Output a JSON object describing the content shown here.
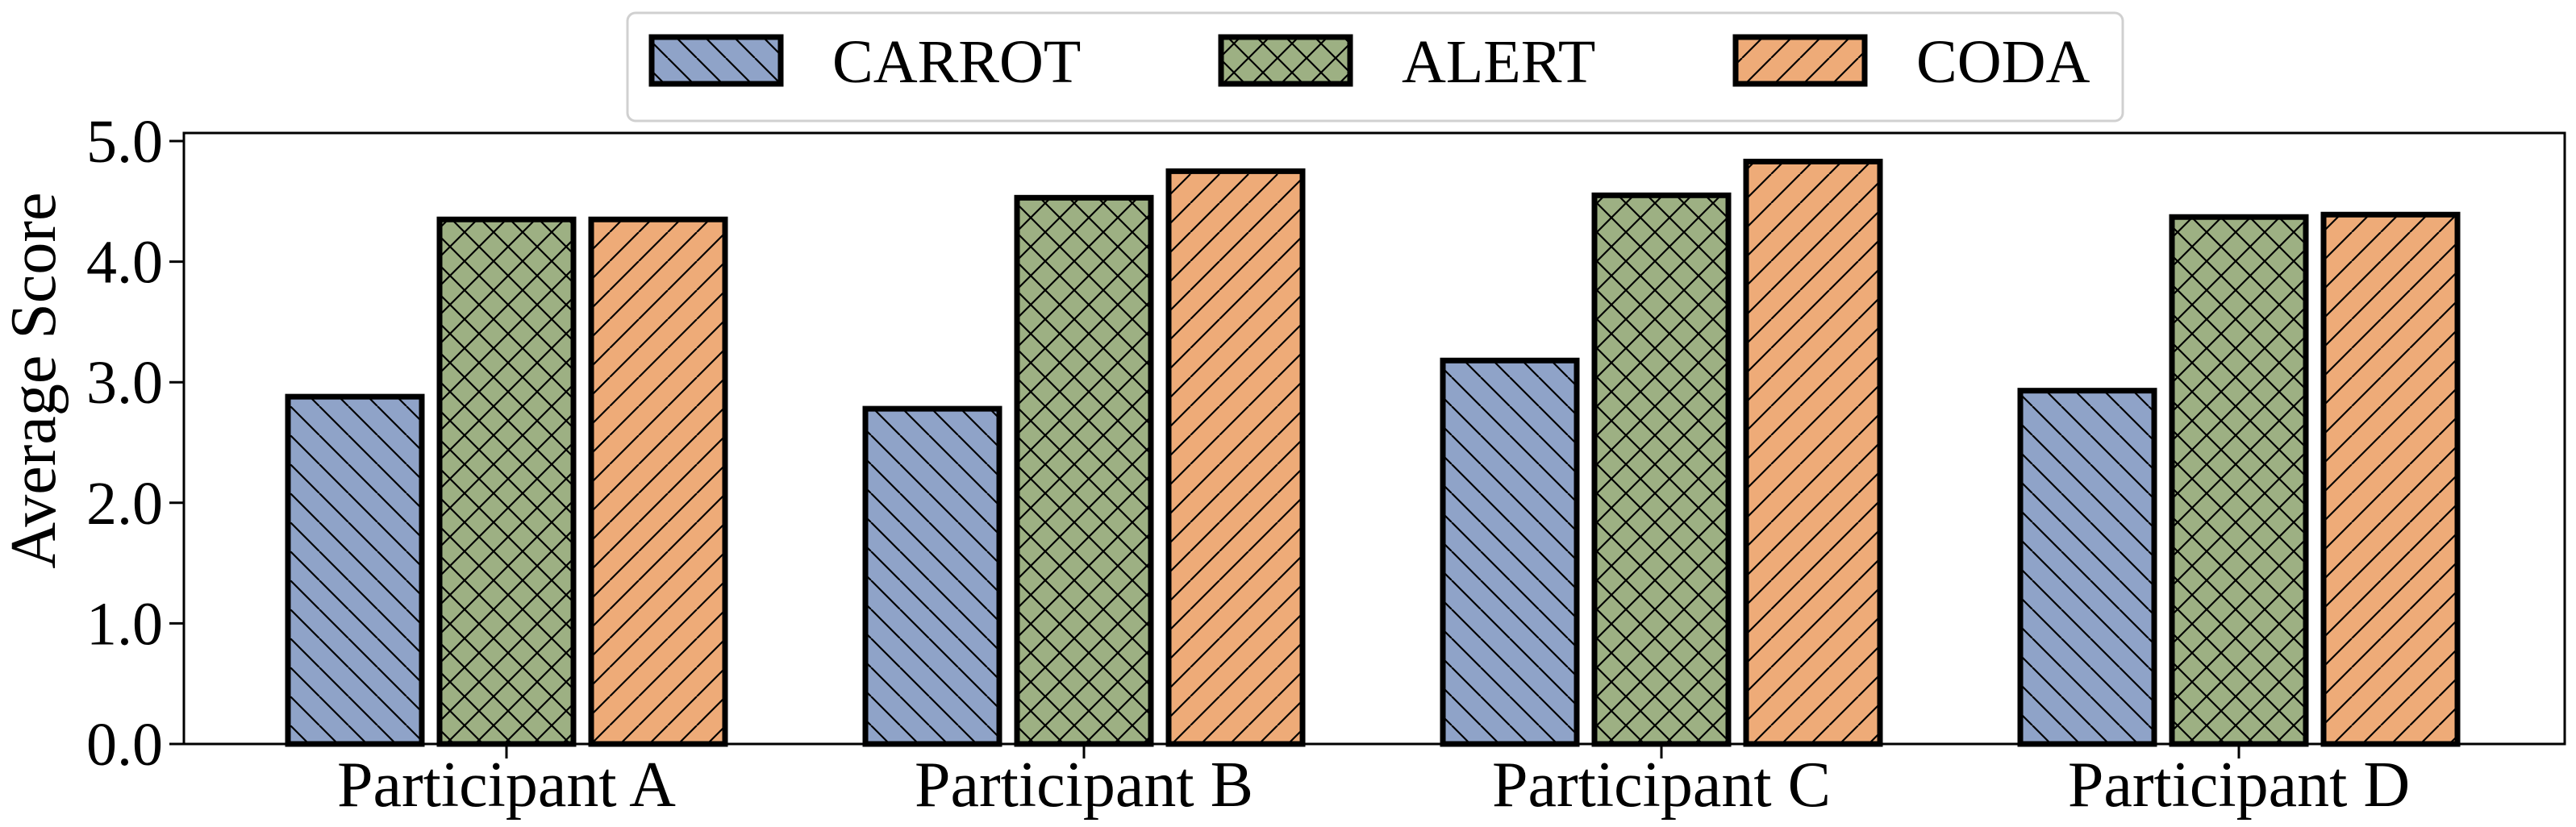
{
  "chart_data": {
    "type": "bar",
    "title": "",
    "xlabel": "",
    "ylabel": "Average Score",
    "ylim": [
      0,
      5
    ],
    "yticks": [
      "0.0",
      "1.0",
      "2.0",
      "3.0",
      "4.0",
      "5.0"
    ],
    "categories": [
      "Participant A",
      "Participant B",
      "Participant C",
      "Participant D"
    ],
    "series": [
      {
        "name": "CARROT",
        "values": [
          2.88,
          2.78,
          3.18,
          2.93
        ],
        "color": "#8fa3c8",
        "hatch": "backslash"
      },
      {
        "name": "ALERT",
        "values": [
          4.35,
          4.53,
          4.55,
          4.37
        ],
        "color": "#9db083",
        "hatch": "cross"
      },
      {
        "name": "CODA",
        "values": [
          4.35,
          4.75,
          4.83,
          4.39
        ],
        "color": "#eeab78",
        "hatch": "slash"
      }
    ],
    "legend_position": "top-center",
    "grid": false
  }
}
